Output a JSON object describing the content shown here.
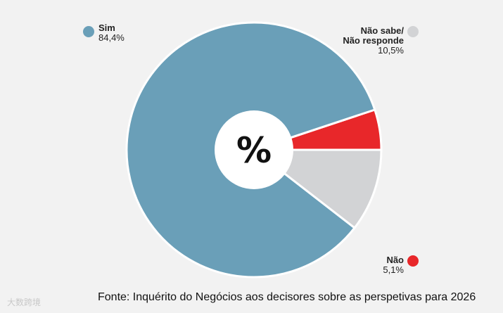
{
  "chart_data": {
    "type": "pie",
    "donut": true,
    "center_label": "%",
    "slices": [
      {
        "label": "Não",
        "value": 5.1,
        "display_value": "5,1%",
        "color": "#e8272a"
      },
      {
        "label": "Sim",
        "value": 84.4,
        "display_value": "84,4%",
        "color": "#6a9fb8"
      },
      {
        "label_line1": "Não sabe/",
        "label_line2": "Não responde",
        "value": 10.5,
        "display_value": "10,5%",
        "color": "#d2d3d5"
      }
    ],
    "source": "Fonte: Inquérito do Negócios aos decisores sobre as perspetivas para 2026"
  },
  "watermark": "大数跨境",
  "colors": {
    "background": "#f2f2f2",
    "separator": "#ffffff"
  }
}
